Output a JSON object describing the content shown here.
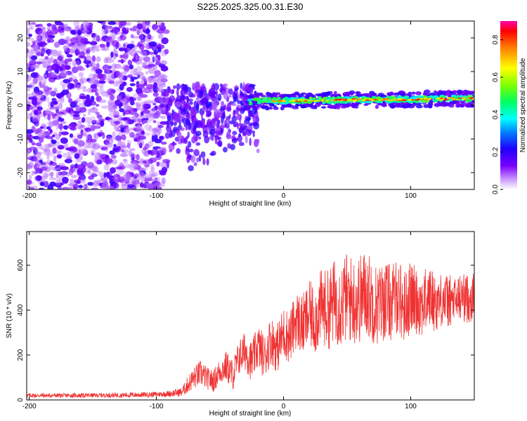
{
  "title": "S225.2025.325.00.31.E30",
  "chart_data": [
    {
      "type": "heatmap",
      "name": "spectrogram",
      "xlabel": "Height of straight line (km)",
      "ylabel": "Frequency (Hz)",
      "xlim": [
        -202,
        150
      ],
      "ylim": [
        -25,
        25
      ],
      "xticks": [
        -200,
        -100,
        0,
        100
      ],
      "xtick_labels": [
        "-200",
        "-100",
        "0",
        "100"
      ],
      "yticks": [
        20,
        10,
        0,
        -10,
        -20
      ],
      "ytick_labels": [
        "20",
        "10",
        "0",
        "-10",
        "-20"
      ],
      "colorbar": {
        "label": "Normalized spectral amplitude",
        "range": [
          0,
          0.9
        ],
        "ticks": [
          0.0,
          0.2,
          0.4,
          0.6,
          0.8
        ],
        "tick_labels": [
          "0.0",
          "0.2",
          "0.4",
          "0.6",
          "0.8"
        ]
      },
      "features": [
        {
          "region": "noise",
          "x_range": [
            -202,
            -92
          ],
          "f_range": [
            -25,
            25
          ],
          "amplitude": 0.1
        },
        {
          "region": "descending-streaks",
          "x_range": [
            -92,
            -20
          ],
          "f_range": [
            -22,
            6
          ],
          "amplitude": 0.2
        },
        {
          "region": "signal-band",
          "x_range": [
            -30,
            150
          ],
          "f_center_start": 1.2,
          "f_center_end": 2.0,
          "amplitude": 0.75
        }
      ]
    },
    {
      "type": "line",
      "name": "snr",
      "xlabel": "Height of straight line (km)",
      "ylabel": "SNR (10 * v/v)",
      "xlim": [
        -202,
        150
      ],
      "ylim": [
        0,
        750
      ],
      "xticks": [
        -200,
        -100,
        0,
        100
      ],
      "xtick_labels": [
        "-200",
        "-100",
        "0",
        "100"
      ],
      "yticks": [
        0,
        200,
        400,
        600
      ],
      "ytick_labels": [
        "0",
        "200",
        "400",
        "600"
      ],
      "color": "#f03232",
      "x": [
        -202,
        -180,
        -160,
        -140,
        -120,
        -100,
        -90,
        -80,
        -75,
        -70,
        -65,
        -60,
        -55,
        -50,
        -45,
        -40,
        -35,
        -30,
        -25,
        -20,
        -15,
        -10,
        -5,
        0,
        5,
        10,
        15,
        20,
        25,
        30,
        35,
        40,
        45,
        50,
        55,
        60,
        65,
        70,
        75,
        80,
        85,
        90,
        95,
        100,
        105,
        110,
        115,
        120,
        125,
        130,
        135,
        140,
        145,
        150
      ],
      "values": [
        20,
        20,
        20,
        21,
        22,
        25,
        28,
        35,
        70,
        100,
        120,
        95,
        85,
        130,
        150,
        110,
        190,
        220,
        170,
        240,
        190,
        270,
        230,
        300,
        280,
        360,
        330,
        380,
        360,
        420,
        400,
        440,
        430,
        460,
        440,
        450,
        480,
        440,
        420,
        450,
        430,
        470,
        410,
        460,
        440,
        430,
        460,
        430,
        450,
        440,
        440,
        460,
        450,
        460
      ],
      "noise_amplitude": [
        10,
        10,
        10,
        10,
        12,
        12,
        14,
        20,
        40,
        50,
        60,
        50,
        50,
        60,
        70,
        70,
        80,
        90,
        90,
        100,
        100,
        110,
        110,
        120,
        120,
        130,
        140,
        150,
        160,
        170,
        180,
        190,
        200,
        200,
        200,
        200,
        200,
        190,
        180,
        180,
        170,
        170,
        170,
        160,
        150,
        150,
        140,
        130,
        120,
        120,
        110,
        110,
        110,
        110
      ]
    }
  ]
}
